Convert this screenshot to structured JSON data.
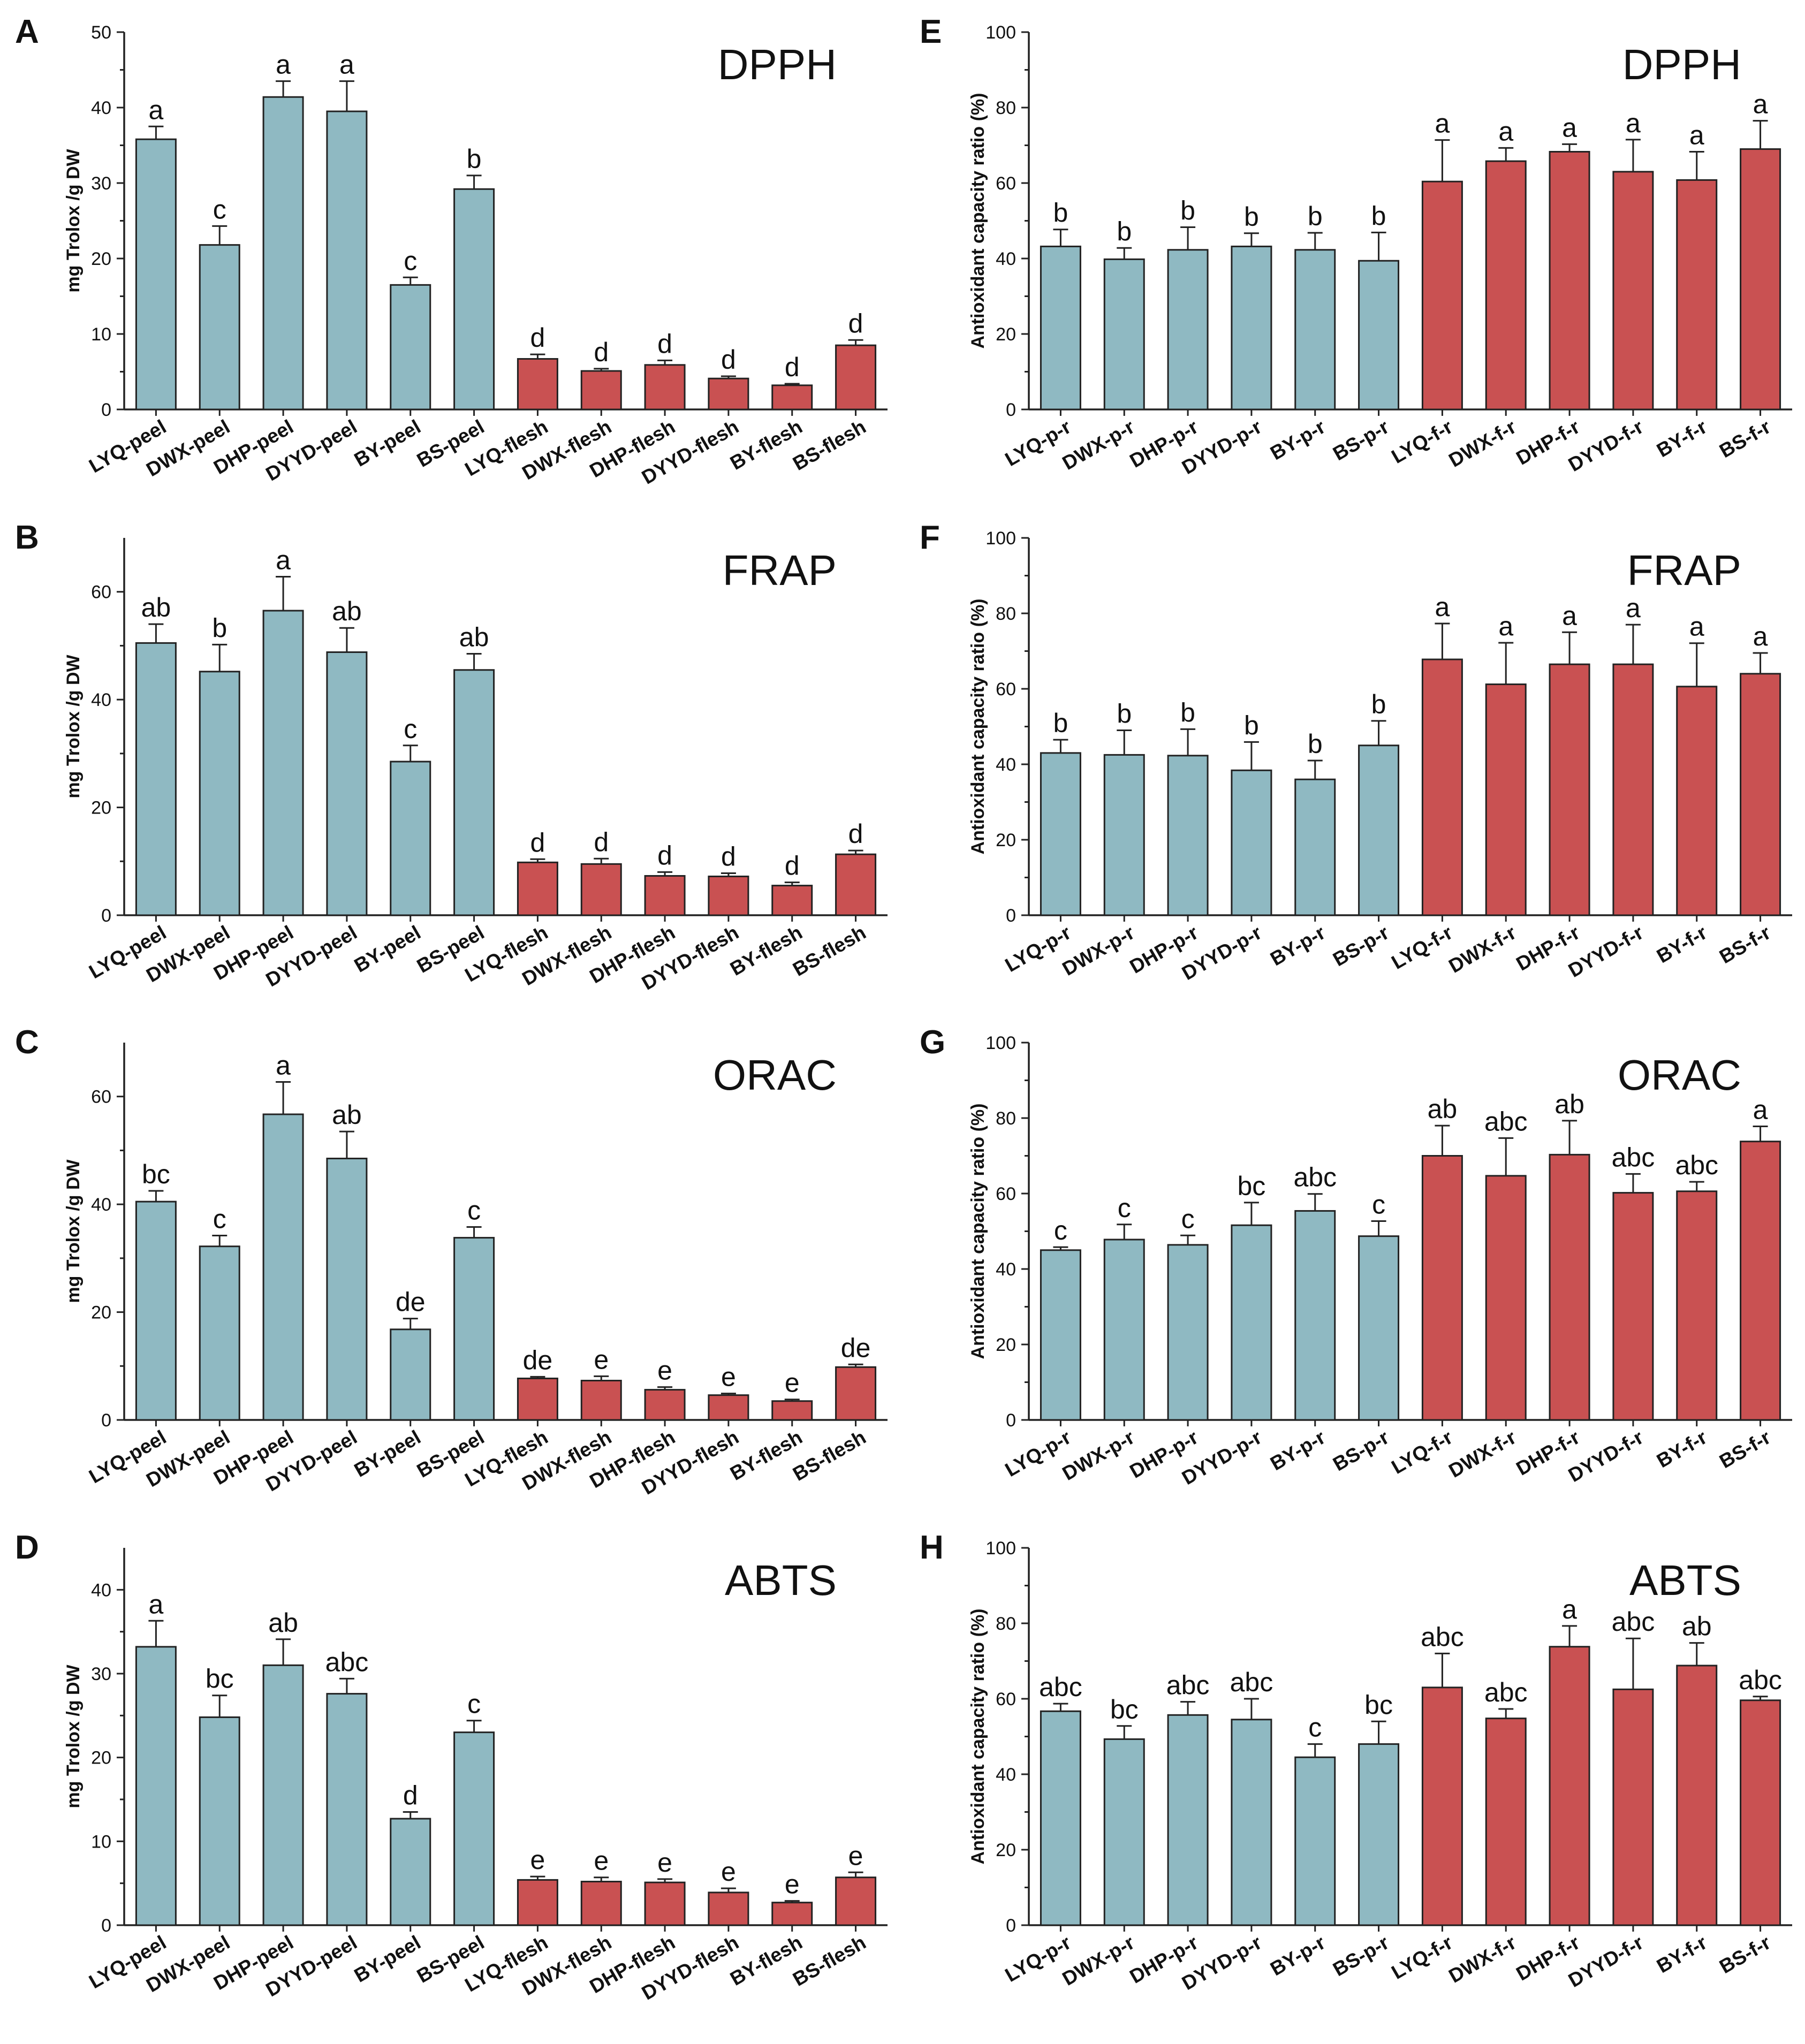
{
  "colors": {
    "peel": "#8fb9c2",
    "flesh": "#c95152",
    "axis": "#222222"
  },
  "chart_data": [
    {
      "panel": "A",
      "type": "bar",
      "title": "DPPH",
      "ylabel": "mg Trolox /g DW",
      "ylim": [
        0,
        50
      ],
      "yticks": [
        0,
        10,
        20,
        30,
        40,
        50
      ],
      "categories": [
        "LYQ-peel",
        "DWX-peel",
        "DHP-peel",
        "DYYD-peel",
        "BY-peel",
        "BS-peel",
        "LYQ-flesh",
        "DWX-flesh",
        "DHP-flesh",
        "DYYD-flesh",
        "BY-flesh",
        "BS-flesh"
      ],
      "values": [
        35.8,
        21.8,
        41.4,
        39.5,
        16.5,
        29.2,
        6.7,
        5.1,
        5.9,
        4.1,
        3.2,
        8.5
      ],
      "errors": [
        1.7,
        2.5,
        2.1,
        4.0,
        1.0,
        1.8,
        0.6,
        0.3,
        0.6,
        0.3,
        0.2,
        0.7
      ],
      "letters": [
        "a",
        "c",
        "a",
        "a",
        "c",
        "b",
        "d",
        "d",
        "d",
        "d",
        "d",
        "d"
      ],
      "tissue": [
        "peel",
        "peel",
        "peel",
        "peel",
        "peel",
        "peel",
        "flesh",
        "flesh",
        "flesh",
        "flesh",
        "flesh",
        "flesh"
      ]
    },
    {
      "panel": "B",
      "type": "bar",
      "title": "FRAP",
      "ylabel": "mg Trolox /g DW",
      "ylim": [
        0,
        70
      ],
      "yticks": [
        0,
        20,
        40,
        60
      ],
      "categories": [
        "LYQ-peel",
        "DWX-peel",
        "DHP-peel",
        "DYYD-peel",
        "BY-peel",
        "BS-peel",
        "LYQ-flesh",
        "DWX-flesh",
        "DHP-flesh",
        "DYYD-flesh",
        "BY-flesh",
        "BS-flesh"
      ],
      "values": [
        50.5,
        45.2,
        56.5,
        48.8,
        28.5,
        45.5,
        9.8,
        9.5,
        7.3,
        7.2,
        5.5,
        11.3
      ],
      "errors": [
        3.5,
        5.0,
        6.3,
        4.5,
        3.0,
        3.0,
        0.6,
        1.0,
        0.7,
        0.6,
        0.6,
        0.7
      ],
      "letters": [
        "ab",
        "b",
        "a",
        "ab",
        "c",
        "ab",
        "d",
        "d",
        "d",
        "d",
        "d",
        "d"
      ],
      "tissue": [
        "peel",
        "peel",
        "peel",
        "peel",
        "peel",
        "peel",
        "flesh",
        "flesh",
        "flesh",
        "flesh",
        "flesh",
        "flesh"
      ]
    },
    {
      "panel": "C",
      "type": "bar",
      "title": "ORAC",
      "ylabel": "mg Trolox /g DW",
      "ylim": [
        0,
        70
      ],
      "yticks": [
        0,
        20,
        40,
        60
      ],
      "categories": [
        "LYQ-peel",
        "DWX-peel",
        "DHP-peel",
        "DYYD-peel",
        "BY-peel",
        "BS-peel",
        "LYQ-flesh",
        "DWX-flesh",
        "DHP-flesh",
        "DYYD-flesh",
        "BY-flesh",
        "BS-flesh"
      ],
      "values": [
        40.5,
        32.2,
        56.7,
        48.5,
        16.8,
        33.8,
        7.7,
        7.3,
        5.6,
        4.6,
        3.5,
        9.8
      ],
      "errors": [
        2.0,
        2.0,
        6.0,
        5.0,
        2.0,
        2.0,
        0.3,
        0.8,
        0.5,
        0.3,
        0.3,
        0.5
      ],
      "letters": [
        "bc",
        "c",
        "a",
        "ab",
        "de",
        "c",
        "de",
        "e",
        "e",
        "e",
        "e",
        "de"
      ],
      "tissue": [
        "peel",
        "peel",
        "peel",
        "peel",
        "peel",
        "peel",
        "flesh",
        "flesh",
        "flesh",
        "flesh",
        "flesh",
        "flesh"
      ]
    },
    {
      "panel": "D",
      "type": "bar",
      "title": "ABTS",
      "ylabel": "mg Trolox /g DW",
      "ylim": [
        0,
        45
      ],
      "yticks": [
        0,
        10,
        20,
        30,
        40
      ],
      "categories": [
        "LYQ-peel",
        "DWX-peel",
        "DHP-peel",
        "DYYD-peel",
        "BY-peel",
        "BS-peel",
        "LYQ-flesh",
        "DWX-flesh",
        "DHP-flesh",
        "DYYD-flesh",
        "BY-flesh",
        "BS-flesh"
      ],
      "values": [
        33.2,
        24.8,
        31.0,
        27.6,
        12.7,
        23.0,
        5.4,
        5.2,
        5.1,
        3.9,
        2.7,
        5.7
      ],
      "errors": [
        3.1,
        2.6,
        3.1,
        1.8,
        0.8,
        1.4,
        0.4,
        0.5,
        0.4,
        0.5,
        0.2,
        0.6
      ],
      "letters": [
        "a",
        "bc",
        "ab",
        "abc",
        "d",
        "c",
        "e",
        "e",
        "e",
        "e",
        "e",
        "e"
      ],
      "tissue": [
        "peel",
        "peel",
        "peel",
        "peel",
        "peel",
        "peel",
        "flesh",
        "flesh",
        "flesh",
        "flesh",
        "flesh",
        "flesh"
      ]
    },
    {
      "panel": "E",
      "type": "bar",
      "title": "DPPH",
      "ylabel": "Antioxidant capacity ratio (%)",
      "ylim": [
        0,
        100
      ],
      "yticks": [
        0,
        20,
        40,
        60,
        80,
        100
      ],
      "categories": [
        "LYQ-p-r",
        "DWX-p-r",
        "DHP-p-r",
        "DYYD-p-r",
        "BY-p-r",
        "BS-p-r",
        "LYQ-f-r",
        "DWX-f-r",
        "DHP-f-r",
        "DYYD-f-r",
        "BY-f-r",
        "BS-f-r"
      ],
      "values": [
        43.2,
        39.8,
        42.3,
        43.2,
        42.3,
        39.4,
        60.4,
        65.8,
        68.3,
        63.0,
        60.8,
        69.0
      ],
      "errors": [
        4.5,
        3.0,
        6.0,
        3.5,
        4.5,
        7.5,
        11.0,
        3.5,
        2.0,
        8.5,
        7.5,
        7.5
      ],
      "letters": [
        "b",
        "b",
        "b",
        "b",
        "b",
        "b",
        "a",
        "a",
        "a",
        "a",
        "a",
        "a"
      ],
      "tissue": [
        "peel",
        "peel",
        "peel",
        "peel",
        "peel",
        "peel",
        "flesh",
        "flesh",
        "flesh",
        "flesh",
        "flesh",
        "flesh"
      ]
    },
    {
      "panel": "F",
      "type": "bar",
      "title": "FRAP",
      "ylabel": "Antioxidant capacity ratio (%)",
      "ylim": [
        0,
        100
      ],
      "yticks": [
        0,
        20,
        40,
        60,
        80,
        100
      ],
      "categories": [
        "LYQ-p-r",
        "DWX-p-r",
        "DHP-p-r",
        "DYYD-p-r",
        "BY-p-r",
        "BS-p-r",
        "LYQ-f-r",
        "DWX-f-r",
        "DHP-f-r",
        "DYYD-f-r",
        "BY-f-r",
        "BS-f-r"
      ],
      "values": [
        43.0,
        42.5,
        42.3,
        38.4,
        36.0,
        45.0,
        67.8,
        61.2,
        66.5,
        66.5,
        60.6,
        64.0
      ],
      "errors": [
        3.5,
        6.5,
        7.0,
        7.5,
        5.0,
        6.5,
        9.5,
        11.0,
        8.5,
        10.5,
        11.5,
        5.5
      ],
      "letters": [
        "b",
        "b",
        "b",
        "b",
        "b",
        "b",
        "a",
        "a",
        "a",
        "a",
        "a",
        "a"
      ],
      "tissue": [
        "peel",
        "peel",
        "peel",
        "peel",
        "peel",
        "peel",
        "flesh",
        "flesh",
        "flesh",
        "flesh",
        "flesh",
        "flesh"
      ]
    },
    {
      "panel": "G",
      "type": "bar",
      "title": "ORAC",
      "ylabel": "Antioxidant capacity ratio (%)",
      "ylim": [
        0,
        100
      ],
      "yticks": [
        0,
        20,
        40,
        60,
        80,
        100
      ],
      "categories": [
        "LYQ-p-r",
        "DWX-p-r",
        "DHP-p-r",
        "DYYD-p-r",
        "BY-p-r",
        "BS-p-r",
        "LYQ-f-r",
        "DWX-f-r",
        "DHP-f-r",
        "DYYD-f-r",
        "BY-f-r",
        "BS-f-r"
      ],
      "values": [
        45.0,
        47.8,
        46.4,
        51.6,
        55.4,
        48.7,
        70.0,
        64.7,
        70.3,
        60.2,
        60.6,
        73.8
      ],
      "errors": [
        0.8,
        4.0,
        2.5,
        6.0,
        4.5,
        4.0,
        8.0,
        10.0,
        9.0,
        5.0,
        2.5,
        4.0
      ],
      "letters": [
        "c",
        "c",
        "c",
        "bc",
        "abc",
        "c",
        "ab",
        "abc",
        "ab",
        "abc",
        "abc",
        "a"
      ],
      "tissue": [
        "peel",
        "peel",
        "peel",
        "peel",
        "peel",
        "peel",
        "flesh",
        "flesh",
        "flesh",
        "flesh",
        "flesh",
        "flesh"
      ]
    },
    {
      "panel": "H",
      "type": "bar",
      "title": "ABTS",
      "ylabel": "Antioxidant capacity ratio (%)",
      "ylim": [
        0,
        100
      ],
      "yticks": [
        0,
        20,
        40,
        60,
        80,
        100
      ],
      "categories": [
        "LYQ-p-r",
        "DWX-p-r",
        "DHP-p-r",
        "DYYD-p-r",
        "BY-p-r",
        "BS-p-r",
        "LYQ-f-r",
        "DWX-f-r",
        "DHP-f-r",
        "DYYD-f-r",
        "BY-f-r",
        "BS-f-r"
      ],
      "values": [
        56.7,
        49.3,
        55.7,
        54.5,
        44.5,
        48.0,
        63.0,
        54.8,
        73.8,
        62.5,
        68.8,
        59.6
      ],
      "errors": [
        2.0,
        3.5,
        3.5,
        5.5,
        3.5,
        6.0,
        9.0,
        2.5,
        5.5,
        13.5,
        6.0,
        1.0
      ],
      "letters": [
        "abc",
        "bc",
        "abc",
        "abc",
        "c",
        "bc",
        "abc",
        "abc",
        "a",
        "abc",
        "ab",
        "abc"
      ],
      "tissue": [
        "peel",
        "peel",
        "peel",
        "peel",
        "peel",
        "peel",
        "flesh",
        "flesh",
        "flesh",
        "flesh",
        "flesh",
        "flesh"
      ]
    }
  ]
}
